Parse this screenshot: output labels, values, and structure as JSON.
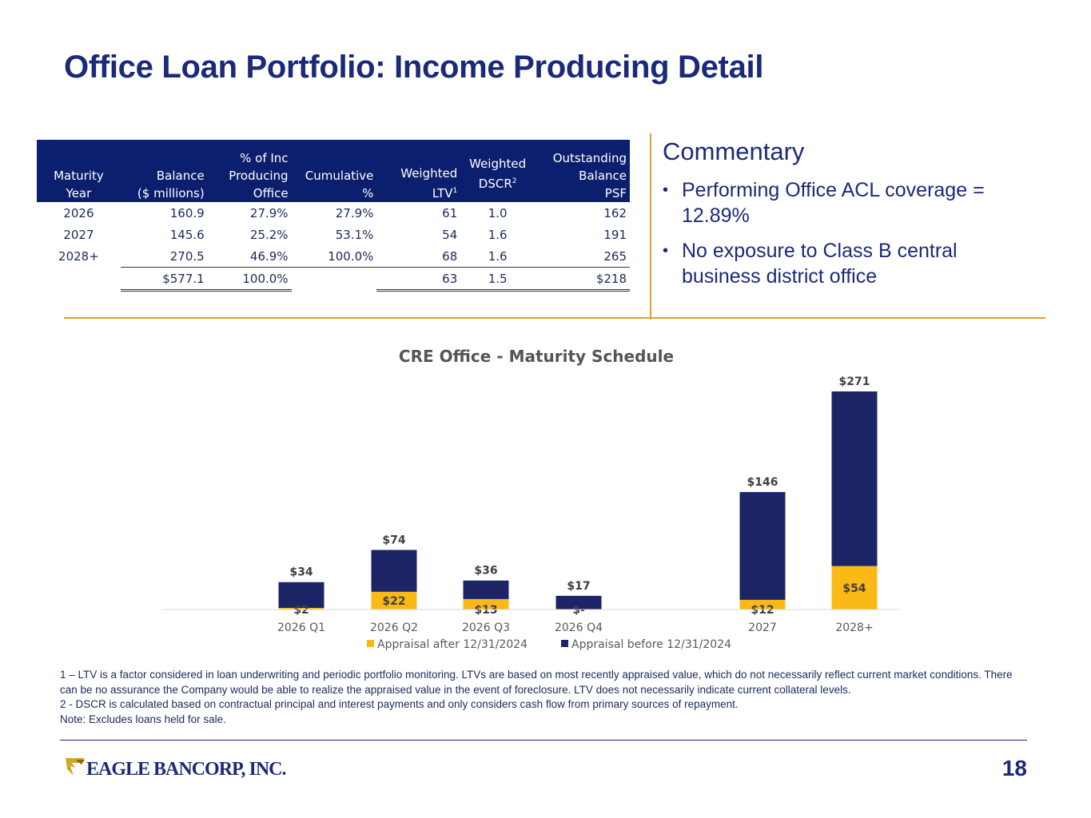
{
  "page": {
    "title": "Office Loan Portfolio: Income Producing Detail",
    "page_number": "18",
    "logo_text": "EAGLE BANCORP, INC."
  },
  "table": {
    "headers": [
      [
        "Maturity",
        "Year"
      ],
      [
        "Balance",
        "($ millions)"
      ],
      [
        "% of Inc",
        "Producing",
        "Office"
      ],
      [
        "Cumulative",
        "%"
      ],
      [
        "Weighted",
        "LTV",
        "1"
      ],
      [
        "Weighted",
        "DSCR",
        "2"
      ],
      [
        "Outstanding",
        "Balance",
        "PSF"
      ]
    ],
    "rows": [
      [
        "2026",
        "160.9",
        "27.9%",
        "27.9%",
        "61",
        "1.0",
        "162"
      ],
      [
        "2027",
        "145.6",
        "25.2%",
        "53.1%",
        "54",
        "1.6",
        "191"
      ],
      [
        "2028+",
        "270.5",
        "46.9%",
        "100.0%",
        "68",
        "1.6",
        "265"
      ]
    ],
    "total": [
      "",
      "$577.1",
      "100.0%",
      "",
      "63",
      "1.5",
      "$218"
    ]
  },
  "commentary": {
    "title": "Commentary",
    "bullets": [
      "Performing Office ACL coverage = 12.89%",
      "No exposure to Class B central business district office"
    ]
  },
  "chart_data": {
    "type": "bar",
    "stacked": true,
    "title": "CRE Office - Maturity Schedule",
    "categories": [
      "2026 Q1",
      "2026 Q2",
      "2026 Q3",
      "2026 Q4",
      "2027",
      "2028+"
    ],
    "series": [
      {
        "name": "Appraisal after 12/31/2024",
        "color": "#fbb917",
        "values": [
          2,
          22,
          13,
          0,
          12,
          54
        ],
        "labels": [
          "$2",
          "$22",
          "$13",
          "$-",
          "$12",
          "$54"
        ]
      },
      {
        "name": "Appraisal before 12/31/2024",
        "color": "#1b2566",
        "values": [
          32,
          52,
          23,
          17,
          134,
          217
        ]
      }
    ],
    "totals": [
      34,
      74,
      36,
      17,
      146,
      271
    ],
    "total_labels": [
      "$34",
      "$74",
      "$36",
      "$17",
      "$146",
      "$271"
    ],
    "legend": "bottom",
    "grid": false
  },
  "footnotes": [
    "1 – LTV is a factor considered in loan underwriting and periodic portfolio monitoring. LTVs are based on most recently appraised value, which do not necessarily reflect current market conditions. There can be no assurance the Company would be able to realize the appraised value in the event of foreclosure. LTV does not necessarily indicate current collateral levels.",
    "2 - DSCR is calculated based on contractual principal and interest payments and only considers cash flow from primary sources of repayment.",
    "Note: Excludes loans held for sale."
  ],
  "colors": {
    "brand_navy": "#1b2a78",
    "accent_gold": "#d4a72c"
  }
}
